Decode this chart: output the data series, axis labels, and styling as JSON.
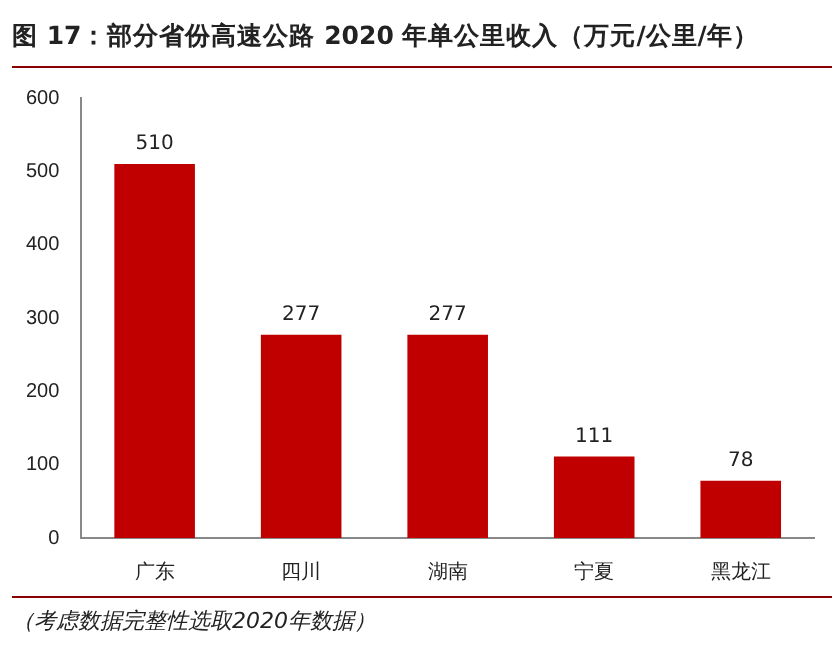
{
  "chart_data": {
    "type": "bar",
    "title": "图 17：部分省份高速公路 2020 年单公里收入（万元/公里/年）",
    "categories": [
      "广东",
      "四川",
      "湖南",
      "宁夏",
      "黑龙江"
    ],
    "values": [
      510,
      277,
      277,
      111,
      78
    ],
    "color": "#c00000",
    "ylim": [
      0,
      600
    ],
    "yticks": [
      0,
      100,
      200,
      300,
      400,
      500,
      600
    ],
    "grid": false,
    "legend": false,
    "data_labels": true,
    "annotations": [
      "（考虑数据完整性选取2020年数据）"
    ]
  }
}
